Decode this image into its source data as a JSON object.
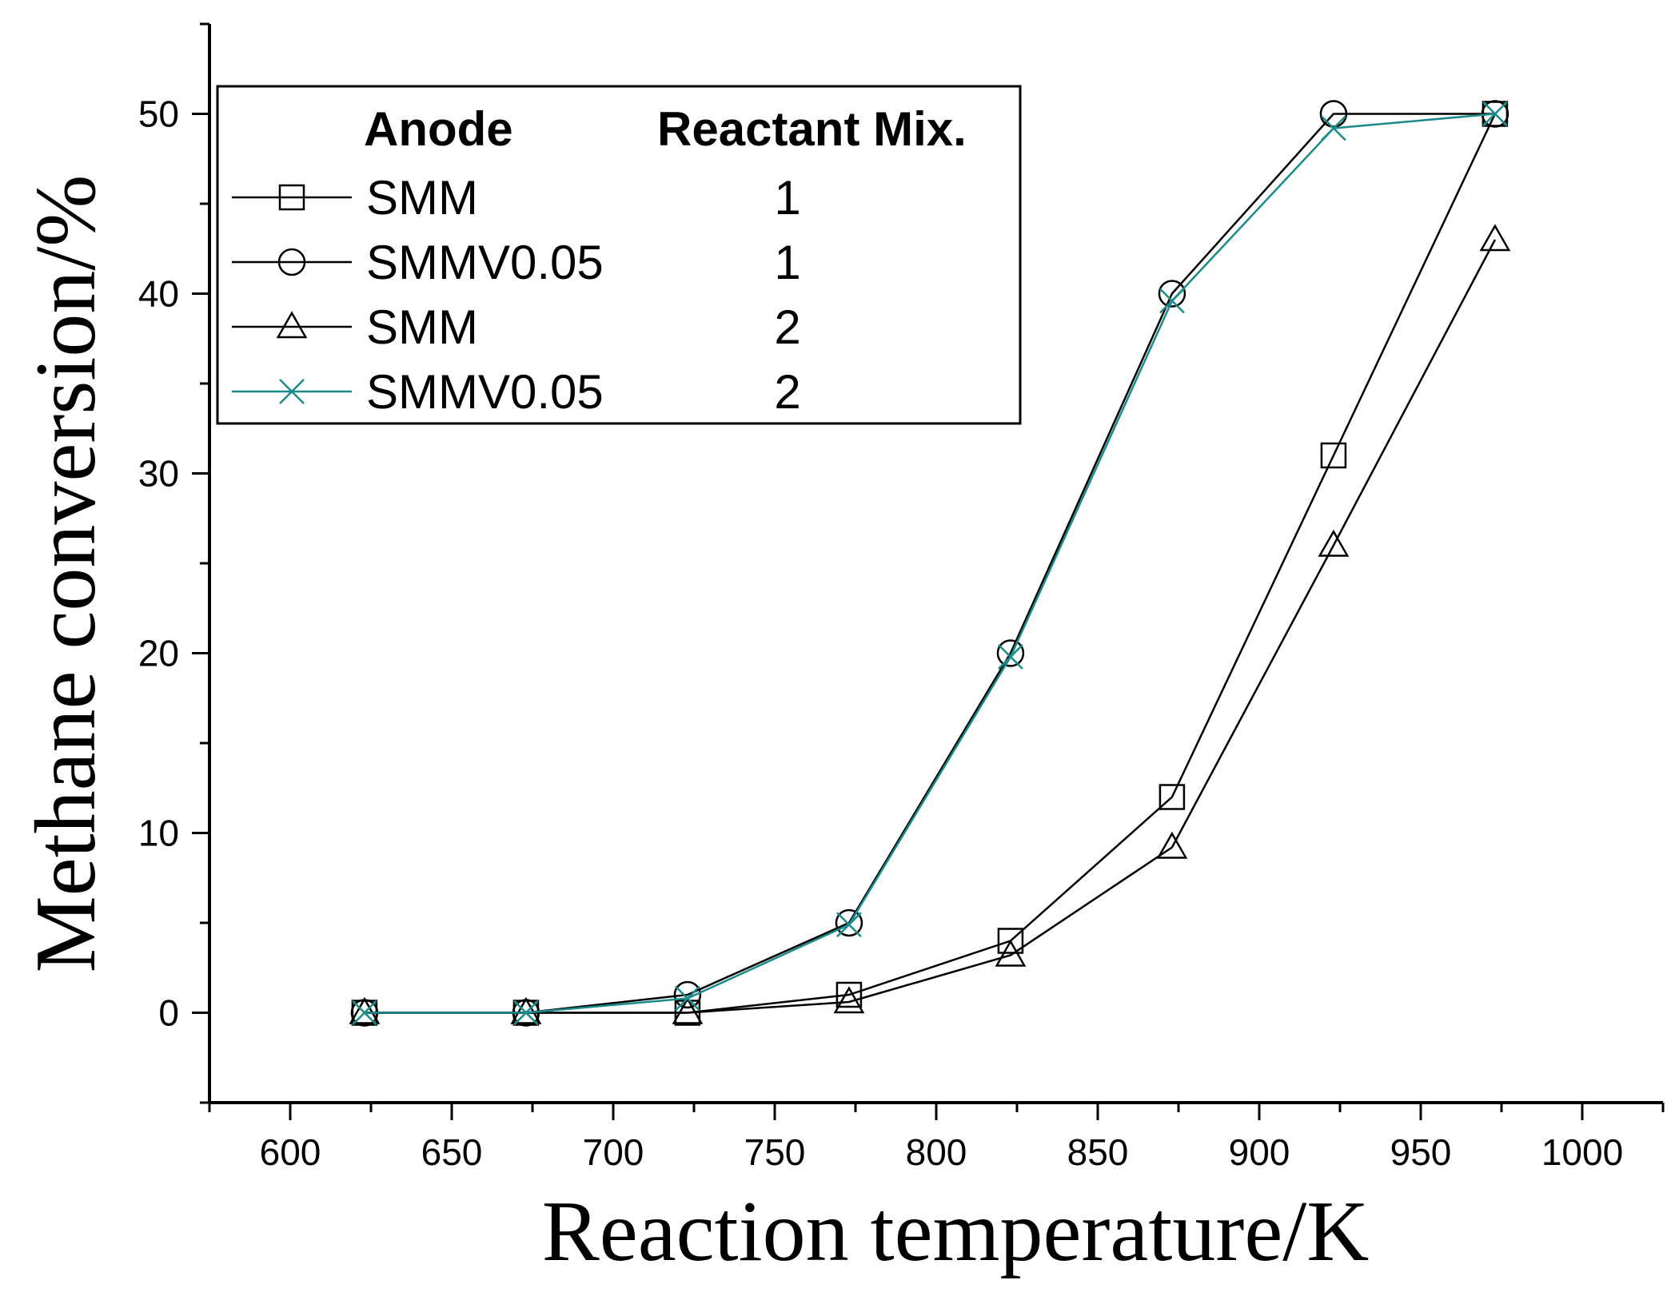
{
  "chart_data": {
    "type": "line",
    "title": "",
    "xlabel": "Reaction temperature/K",
    "ylabel": "Methane conversion/%",
    "xlim": [
      575,
      1025
    ],
    "ylim": [
      -5,
      55
    ],
    "x_ticks": [
      600,
      650,
      700,
      750,
      800,
      850,
      900,
      950,
      1000
    ],
    "y_ticks": [
      0,
      10,
      20,
      30,
      40,
      50
    ],
    "x": [
      623,
      673,
      723,
      773,
      823,
      873,
      923,
      973
    ],
    "legend": {
      "placement": "top-left",
      "header_anode": "Anode",
      "header_mix": "Reactant Mix."
    },
    "series": [
      {
        "name": "SMM",
        "mix": "1",
        "marker": "square",
        "color": "#000000",
        "values": [
          0,
          0,
          0,
          1,
          4,
          12,
          31,
          50
        ]
      },
      {
        "name": "SMMV0.05",
        "mix": "1",
        "marker": "circle",
        "color": "#000000",
        "values": [
          0,
          0,
          1,
          5,
          20,
          40,
          50,
          50
        ]
      },
      {
        "name": "SMM",
        "mix": "2",
        "marker": "triangle",
        "color": "#000000",
        "values": [
          0,
          0,
          0,
          0.6,
          3.2,
          9.2,
          26,
          43
        ]
      },
      {
        "name": "SMMV0.05",
        "mix": "2",
        "marker": "cross",
        "color": "#1a8a8a",
        "values": [
          0,
          0,
          0.8,
          4.9,
          19.8,
          39.6,
          49.2,
          50
        ]
      }
    ]
  }
}
